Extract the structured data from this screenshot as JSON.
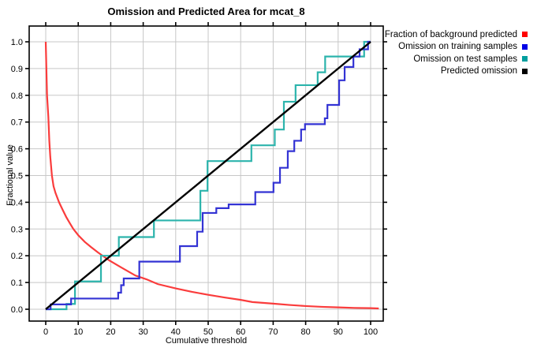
{
  "title": "Omission and Predicted Area for mcat_8",
  "axes": {
    "x_label": "Cumulative threshold",
    "y_label": "Fractional value"
  },
  "legend": {
    "position": "right",
    "items": [
      {
        "label": "Fraction of background predicted",
        "color": "#ff0000"
      },
      {
        "label": "Omission on training samples",
        "color": "#0000e6"
      },
      {
        "label": "Omission on test samples",
        "color": "#009e9e"
      },
      {
        "label": "Predicted omission",
        "color": "#000000"
      }
    ]
  },
  "chart_data": {
    "type": "line",
    "title": "Omission and Predicted Area for mcat_8",
    "xlabel": "Cumulative threshold",
    "ylabel": "Fractional value",
    "xlim": [
      0,
      100
    ],
    "ylim": [
      0.0,
      1.0
    ],
    "grid": true,
    "legend_position": "right",
    "x_ticks": [
      0,
      10,
      20,
      30,
      40,
      50,
      60,
      70,
      80,
      90,
      100
    ],
    "x_tick_labels": [
      "0",
      "10",
      "20",
      "30",
      "40",
      "50",
      "60",
      "70",
      "80",
      "90",
      "100"
    ],
    "y_ticks": [
      0,
      0.1,
      0.2,
      0.3,
      0.4,
      0.5,
      0.6,
      0.7,
      0.8,
      0.9,
      1.0
    ],
    "y_tick_labels": [
      "0.0",
      "0.1",
      "0.2",
      "0.3",
      "0.4",
      "0.5",
      "0.6",
      "0.7",
      "0.8",
      "0.9",
      "1.0"
    ],
    "series": [
      {
        "name": "Fraction of background predicted",
        "style": "line",
        "color": "#fa3c3c",
        "points": [
          [
            0,
            1
          ],
          [
            0.4,
            0.8
          ],
          [
            0.8,
            0.72
          ],
          [
            1.1,
            0.63
          ],
          [
            1.4,
            0.57
          ],
          [
            1.9,
            0.5
          ],
          [
            2.4,
            0.46
          ],
          [
            3,
            0.435
          ],
          [
            4.1,
            0.4
          ],
          [
            5.2,
            0.372
          ],
          [
            6.3,
            0.345
          ],
          [
            7.4,
            0.322
          ],
          [
            8.5,
            0.3
          ],
          [
            10,
            0.277
          ],
          [
            12,
            0.252
          ],
          [
            14,
            0.232
          ],
          [
            16,
            0.213
          ],
          [
            19.5,
            0.183
          ],
          [
            23,
            0.158
          ],
          [
            27.6,
            0.126
          ],
          [
            31,
            0.112
          ],
          [
            34.5,
            0.094
          ],
          [
            40,
            0.078
          ],
          [
            45,
            0.065
          ],
          [
            50,
            0.054
          ],
          [
            55,
            0.044
          ],
          [
            60,
            0.035
          ],
          [
            63.6,
            0.027
          ],
          [
            70,
            0.021
          ],
          [
            75,
            0.016
          ],
          [
            80,
            0.012
          ],
          [
            85,
            0.009
          ],
          [
            90,
            0.007
          ],
          [
            95,
            0.005
          ],
          [
            100,
            0.004
          ],
          [
            102.5,
            0.003
          ]
        ]
      },
      {
        "name": "Omission on training samples",
        "style": "step",
        "color": "#3333d4",
        "points": [
          [
            0,
            0
          ],
          [
            1.5,
            0.018
          ],
          [
            7.8,
            0.04
          ],
          [
            22.3,
            0.062
          ],
          [
            23.2,
            0.09
          ],
          [
            24,
            0.115
          ],
          [
            28.8,
            0.178
          ],
          [
            41.3,
            0.236
          ],
          [
            46.6,
            0.29
          ],
          [
            48.3,
            0.36
          ],
          [
            52.5,
            0.378
          ],
          [
            56.3,
            0.392
          ],
          [
            64.5,
            0.438
          ],
          [
            70.1,
            0.473
          ],
          [
            72.1,
            0.529
          ],
          [
            74.5,
            0.591
          ],
          [
            76.5,
            0.63
          ],
          [
            78.6,
            0.672
          ],
          [
            79.8,
            0.692
          ],
          [
            85.9,
            0.714
          ],
          [
            86.7,
            0.764
          ],
          [
            90.3,
            0.856
          ],
          [
            92,
            0.906
          ],
          [
            94.7,
            0.945
          ],
          [
            96.6,
            0.972
          ],
          [
            99.2,
            1
          ],
          [
            100,
            1
          ]
        ]
      },
      {
        "name": "Omission on test samples",
        "style": "step",
        "color": "#2cb4ac",
        "points": [
          [
            0,
            0
          ],
          [
            6.4,
            0.02
          ],
          [
            9,
            0.104
          ],
          [
            17,
            0.2
          ],
          [
            22.5,
            0.27
          ],
          [
            33.3,
            0.332
          ],
          [
            47.6,
            0.443
          ],
          [
            49.8,
            0.554
          ],
          [
            63.3,
            0.613
          ],
          [
            70.5,
            0.672
          ],
          [
            73.3,
            0.776
          ],
          [
            76.9,
            0.838
          ],
          [
            83.7,
            0.886
          ],
          [
            86,
            0.945
          ],
          [
            98,
            1
          ],
          [
            100,
            1
          ]
        ]
      },
      {
        "name": "Predicted omission",
        "style": "line",
        "color": "#000000",
        "points": [
          [
            0,
            0
          ],
          [
            100,
            1
          ]
        ]
      }
    ]
  }
}
